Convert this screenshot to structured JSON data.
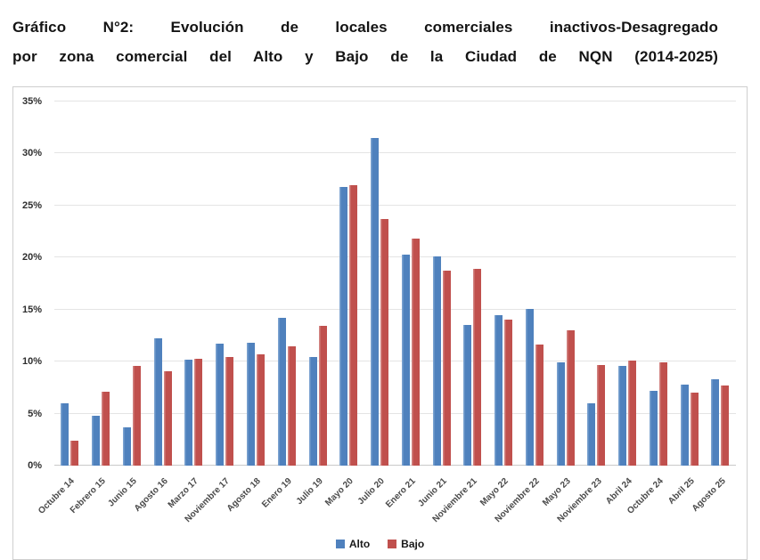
{
  "title": {
    "line1": "Gráfico N°2: Evolución de locales comerciales inactivos-Desagregado",
    "line2": "por zona comercial del Alto y Bajo de la Ciudad de NQN (2014-2025)"
  },
  "colors": {
    "alto": "#4f81bd",
    "alto_light": "#7ba2d0",
    "bajo": "#c0504d",
    "bajo_light": "#d28381",
    "grid": "#e4e4e4",
    "axis_text": "#2e2e2e"
  },
  "chart_data": {
    "type": "bar",
    "title": "Evolución de locales comerciales inactivos - Alto y Bajo NQN (2014-2025)",
    "xlabel": "",
    "ylabel": "",
    "ylim": [
      0,
      35
    ],
    "ytick_step": 5,
    "ytick_suffix": "%",
    "grid": true,
    "legend_position": "bottom",
    "categories": [
      "Octubre 14",
      "Febrero 15",
      "Junio 15",
      "Agosto 16",
      "Marzo 17",
      "Noviembre 17",
      "Agosto 18",
      "Enero 19",
      "Julio 19",
      "Mayo 20",
      "Julio 20",
      "Enero 21",
      "Junio 21",
      "Noviembre 21",
      "Mayo 22",
      "Noviembre 22",
      "Mayo 23",
      "Noviembre 23",
      "Abril 24",
      "Octubre 24",
      "Abril 25",
      "Agosto 25"
    ],
    "series": [
      {
        "name": "Alto",
        "color": "#4f81bd",
        "values": [
          6.0,
          4.8,
          3.7,
          12.2,
          10.2,
          11.7,
          11.8,
          14.2,
          10.4,
          26.8,
          31.5,
          20.3,
          20.1,
          13.5,
          14.5,
          15.1,
          9.9,
          6.0,
          9.6,
          7.2,
          7.8,
          8.3
        ]
      },
      {
        "name": "Bajo",
        "color": "#c0504d",
        "values": [
          2.4,
          7.1,
          9.6,
          9.1,
          10.3,
          10.4,
          10.7,
          11.5,
          13.4,
          27.0,
          23.7,
          21.8,
          18.7,
          18.9,
          14.0,
          11.6,
          13.0,
          9.7,
          10.1,
          9.9,
          7.0,
          7.7
        ]
      }
    ]
  },
  "legend": {
    "items": [
      {
        "label": "Alto",
        "color": "#4f81bd"
      },
      {
        "label": "Bajo",
        "color": "#c0504d"
      }
    ]
  }
}
